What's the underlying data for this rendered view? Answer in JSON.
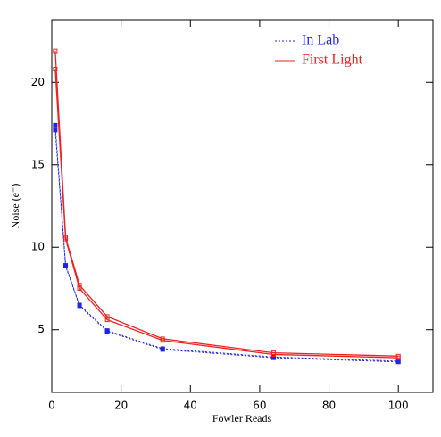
{
  "chart_data": {
    "type": "line",
    "x_label": "Fowler Reads",
    "y_label": "Noise (e⁻)",
    "x": [
      1,
      4,
      8,
      16,
      32,
      64,
      100
    ],
    "series": [
      {
        "name": "In Lab",
        "color": "#2222ee",
        "dash": true,
        "marker": "filled",
        "values": [
          17.4,
          8.9,
          6.5,
          4.95,
          3.85,
          3.35,
          3.1
        ]
      },
      {
        "color": "#2222ee",
        "dash": true,
        "marker": "filled",
        "values": [
          17.1,
          8.85,
          6.45,
          4.9,
          3.8,
          3.3,
          3.05
        ]
      },
      {
        "name": "First Light",
        "color": "#ee2222",
        "dash": false,
        "marker": "open",
        "values": [
          21.9,
          10.6,
          7.7,
          5.8,
          4.45,
          3.6,
          3.4
        ]
      },
      {
        "color": "#ee2222",
        "dash": false,
        "marker": "open",
        "values": [
          20.8,
          10.5,
          7.5,
          5.6,
          4.35,
          3.5,
          3.3
        ]
      }
    ],
    "xlim": [
      0,
      110
    ],
    "ylim": [
      1.2,
      23.8
    ],
    "xticks": [
      0,
      20,
      40,
      60,
      80,
      100
    ],
    "yticks": [
      5,
      10,
      15,
      20
    ],
    "legend": "top-right"
  }
}
